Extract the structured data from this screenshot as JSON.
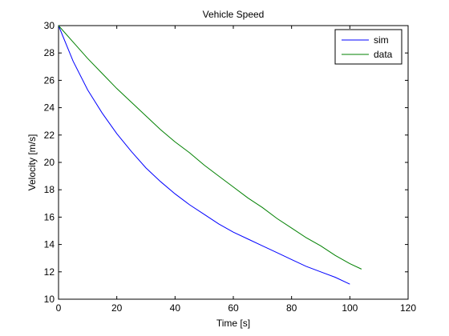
{
  "chart_data": {
    "type": "line",
    "title": "Vehicle Speed",
    "xlabel": "Time [s]",
    "ylabel": "Velocity [m/s]",
    "xlim": [
      0,
      120
    ],
    "ylim": [
      10,
      30
    ],
    "xticks": [
      0,
      20,
      40,
      60,
      80,
      100,
      120
    ],
    "yticks": [
      10,
      12,
      14,
      16,
      18,
      20,
      22,
      24,
      26,
      28,
      30
    ],
    "grid": false,
    "legend_position": "top-right",
    "series": [
      {
        "name": "sim",
        "color": "#0000ff",
        "x": [
          0,
          5,
          10,
          15,
          20,
          25,
          30,
          35,
          40,
          45,
          50,
          55,
          60,
          65,
          70,
          75,
          80,
          85,
          90,
          95,
          100
        ],
        "y": [
          30,
          27.4,
          25.3,
          23.6,
          22.1,
          20.8,
          19.6,
          18.6,
          17.7,
          16.9,
          16.2,
          15.5,
          14.9,
          14.4,
          13.9,
          13.4,
          12.9,
          12.4,
          12.0,
          11.6,
          11.1
        ]
      },
      {
        "name": "data",
        "color": "#008000",
        "x": [
          0,
          5,
          10,
          15,
          20,
          25,
          30,
          35,
          40,
          45,
          50,
          55,
          60,
          65,
          70,
          75,
          80,
          85,
          90,
          95,
          100,
          104
        ],
        "y": [
          30,
          28.8,
          27.6,
          26.5,
          25.4,
          24.4,
          23.4,
          22.4,
          21.5,
          20.7,
          19.8,
          19.0,
          18.2,
          17.4,
          16.7,
          15.9,
          15.2,
          14.5,
          13.9,
          13.2,
          12.6,
          12.2
        ]
      }
    ]
  }
}
